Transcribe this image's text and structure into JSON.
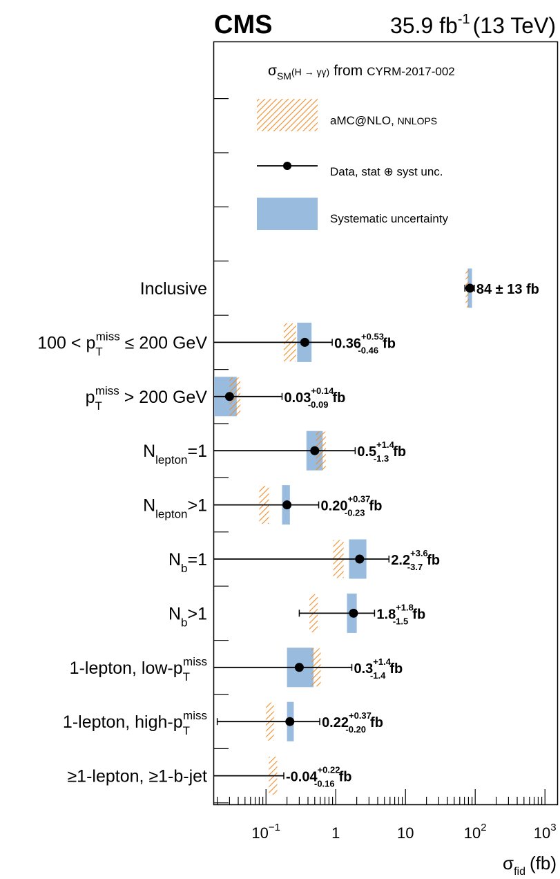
{
  "header": {
    "experiment": "CMS",
    "lumi": "35.9 fb",
    "lumi_exp": "-1",
    "energy": "(13 TeV)"
  },
  "legend": {
    "title_sigma": "σ",
    "title_sub": "SM",
    "title_process": "(H → γγ)",
    "title_from": "from",
    "title_ref": "CYRM-2017-002",
    "items": [
      {
        "kind": "hatch",
        "text_main": "aMC@NLO, ",
        "text_small": "NNLOPS"
      },
      {
        "kind": "marker",
        "text_main": "Data, stat ⊕ syst unc.",
        "text_small": ""
      },
      {
        "kind": "box",
        "text_main": "Systematic uncertainty",
        "text_small": ""
      }
    ]
  },
  "colors": {
    "syst": "#99bbdd",
    "theory": "#f08c28",
    "marker": "#000000"
  },
  "chart_data": {
    "type": "scatter",
    "orientation": "horizontal",
    "x_scale": "log",
    "xlim": [
      0.018,
      1500
    ],
    "xlabel_sigma": "σ",
    "xlabel_sub": "fid",
    "xlabel_unit": "(fb)",
    "xticks": [
      {
        "value": 0.1,
        "base": "10",
        "exp": "−1"
      },
      {
        "value": 1,
        "base": "1",
        "exp": ""
      },
      {
        "value": 10,
        "base": "10",
        "exp": ""
      },
      {
        "value": 100,
        "base": "10",
        "exp": "2"
      },
      {
        "value": 1000,
        "base": "10",
        "exp": "3"
      }
    ],
    "categories": [
      {
        "parts": [
          {
            "t": "Inclusive"
          }
        ],
        "value": 84,
        "err_lo": 13,
        "err_hi": 13,
        "syst_lo": 78,
        "syst_hi": 90,
        "theory_lo": 73,
        "theory_hi": 81,
        "label_main": "84 ± 13 fb",
        "label_sup": "",
        "label_sub": "",
        "label_unit": ""
      },
      {
        "parts": [
          {
            "t": "100 < p"
          },
          {
            "t": "T",
            "s": "sub"
          },
          {
            "t": "miss",
            "s": "sup"
          },
          {
            "t": " ≤ 200 GeV"
          }
        ],
        "value": 0.36,
        "err_lo": 0.46,
        "err_hi": 0.53,
        "syst_lo": 0.28,
        "syst_hi": 0.45,
        "theory_lo": 0.18,
        "theory_hi": 0.27,
        "label_main": "0.36",
        "label_sup": "+0.53",
        "label_sub": "-0.46",
        "label_unit": "fb"
      },
      {
        "parts": [
          {
            "t": "p"
          },
          {
            "t": "T",
            "s": "sub"
          },
          {
            "t": "miss",
            "s": "sup"
          },
          {
            "t": " > 200 GeV"
          }
        ],
        "value": 0.03,
        "err_lo": 0.09,
        "err_hi": 0.14,
        "syst_lo": 0.018,
        "syst_hi": 0.038,
        "theory_lo": 0.03,
        "theory_hi": 0.043,
        "label_main": "0.03",
        "label_sup": "+0.14",
        "label_sub": "-0.09",
        "label_unit": "fb"
      },
      {
        "parts": [
          {
            "t": "N"
          },
          {
            "t": "lepton",
            "s": "sub"
          },
          {
            "t": "=1"
          }
        ],
        "value": 0.5,
        "err_lo": 1.3,
        "err_hi": 1.4,
        "syst_lo": 0.38,
        "syst_hi": 0.65,
        "theory_lo": 0.52,
        "theory_hi": 0.72,
        "label_main": "0.5",
        "label_sup": "+1.4",
        "label_sub": "-1.3",
        "label_unit": "fb"
      },
      {
        "parts": [
          {
            "t": "N"
          },
          {
            "t": "lepton",
            "s": "sub"
          },
          {
            "t": ">1"
          }
        ],
        "value": 0.2,
        "err_lo": 0.23,
        "err_hi": 0.37,
        "syst_lo": 0.17,
        "syst_hi": 0.22,
        "theory_lo": 0.08,
        "theory_hi": 0.11,
        "label_main": "0.20",
        "label_sup": "+0.37",
        "label_sub": "-0.23",
        "label_unit": "fb"
      },
      {
        "parts": [
          {
            "t": "N"
          },
          {
            "t": "b",
            "s": "sub"
          },
          {
            "t": "=1"
          }
        ],
        "value": 2.2,
        "err_lo": 3.7,
        "err_hi": 3.6,
        "syst_lo": 1.55,
        "syst_hi": 2.75,
        "theory_lo": 0.92,
        "theory_hi": 1.3,
        "label_main": "2.2",
        "label_sup": "+3.6",
        "label_sub": "-3.7",
        "label_unit": "fb"
      },
      {
        "parts": [
          {
            "t": "N"
          },
          {
            "t": "b",
            "s": "sub"
          },
          {
            "t": ">1"
          }
        ],
        "value": 1.8,
        "err_lo": 1.5,
        "err_hi": 1.8,
        "syst_lo": 1.45,
        "syst_hi": 2.0,
        "theory_lo": 0.42,
        "theory_hi": 0.55,
        "label_main": "1.8",
        "label_sup": "+1.8",
        "label_sub": "-1.5",
        "label_unit": "fb"
      },
      {
        "parts": [
          {
            "t": "1-lepton, low-p"
          },
          {
            "t": "T",
            "s": "sub"
          },
          {
            "t": "miss",
            "s": "sup"
          }
        ],
        "value": 0.3,
        "err_lo": 1.4,
        "err_hi": 1.4,
        "syst_lo": 0.2,
        "syst_hi": 0.48,
        "theory_lo": 0.45,
        "theory_hi": 0.61,
        "label_main": "0.3",
        "label_sup": "+1.4",
        "label_sub": "-1.4",
        "label_unit": "fb"
      },
      {
        "parts": [
          {
            "t": "1-lepton, high-p"
          },
          {
            "t": "T",
            "s": "sub"
          },
          {
            "t": "miss",
            "s": "sup"
          }
        ],
        "value": 0.22,
        "err_lo": 0.2,
        "err_hi": 0.37,
        "syst_lo": 0.2,
        "syst_hi": 0.25,
        "theory_lo": 0.1,
        "theory_hi": 0.13,
        "label_main": "0.22",
        "label_sup": "+0.37",
        "label_sub": "-0.20",
        "label_unit": "fb"
      },
      {
        "parts": [
          {
            "t": "≥1-lepton, ≥1-b-jet"
          }
        ],
        "value": -0.04,
        "err_lo": 0.16,
        "err_hi": 0.22,
        "syst_lo": null,
        "syst_hi": null,
        "theory_lo": 0.11,
        "theory_hi": 0.145,
        "label_main": "-0.04",
        "label_sup": "+0.22",
        "label_sub": "-0.16",
        "label_unit": "fb"
      }
    ]
  }
}
